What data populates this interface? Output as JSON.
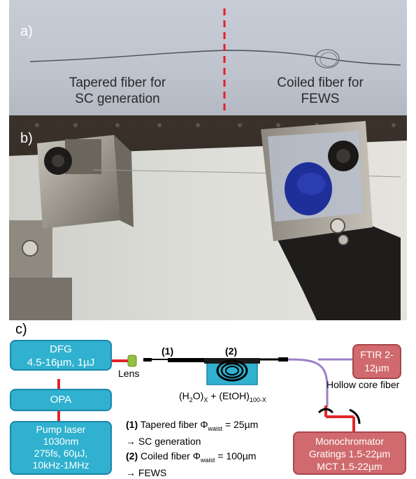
{
  "panel_a": {
    "label": "a)",
    "caption_left": [
      "Tapered fiber for",
      "SC generation"
    ],
    "caption_right": [
      "Coiled fiber for",
      "FEWS"
    ]
  },
  "panel_b": {
    "label": "b)"
  },
  "panel_c": {
    "label": "c)",
    "dfg": [
      "DFG",
      "4.5-16µm, 1µJ"
    ],
    "opa": "OPA",
    "pump": [
      "Pump laser",
      "1030nm",
      "275fs, 60µJ,",
      "10kHz-1MHz"
    ],
    "lens": "Lens",
    "seg1": "(1)",
    "seg2": "(2)",
    "mixture": {
      "a": "(H",
      "b": "2",
      "c": "O)",
      "d": "X",
      "e": " + (EtOH)",
      "f": "100-X"
    },
    "ftir": [
      "FTIR 2-",
      "12µm"
    ],
    "hollow": "Hollow core fiber",
    "note1": {
      "num": "(1)",
      "text": " Tapered fiber Φ",
      "sub": "waist",
      "val": " = 25µm",
      "arrow": "→ SC generation"
    },
    "note2": {
      "num": "(2)",
      "text": " Coiled fiber Φ",
      "sub": "waist",
      "val": " = 100µm",
      "arrow": "→ FEWS"
    },
    "mono": [
      "Monochromator",
      "Gratings 1.5-22µm",
      "MCT 1.5-22µm"
    ],
    "colors": {
      "box_blue": "#2fb1cf",
      "box_red": "#d06a6e",
      "link_red": "#e0262a",
      "hollow_purple": "#9b7fc7",
      "lens_green": "#93c140"
    }
  }
}
